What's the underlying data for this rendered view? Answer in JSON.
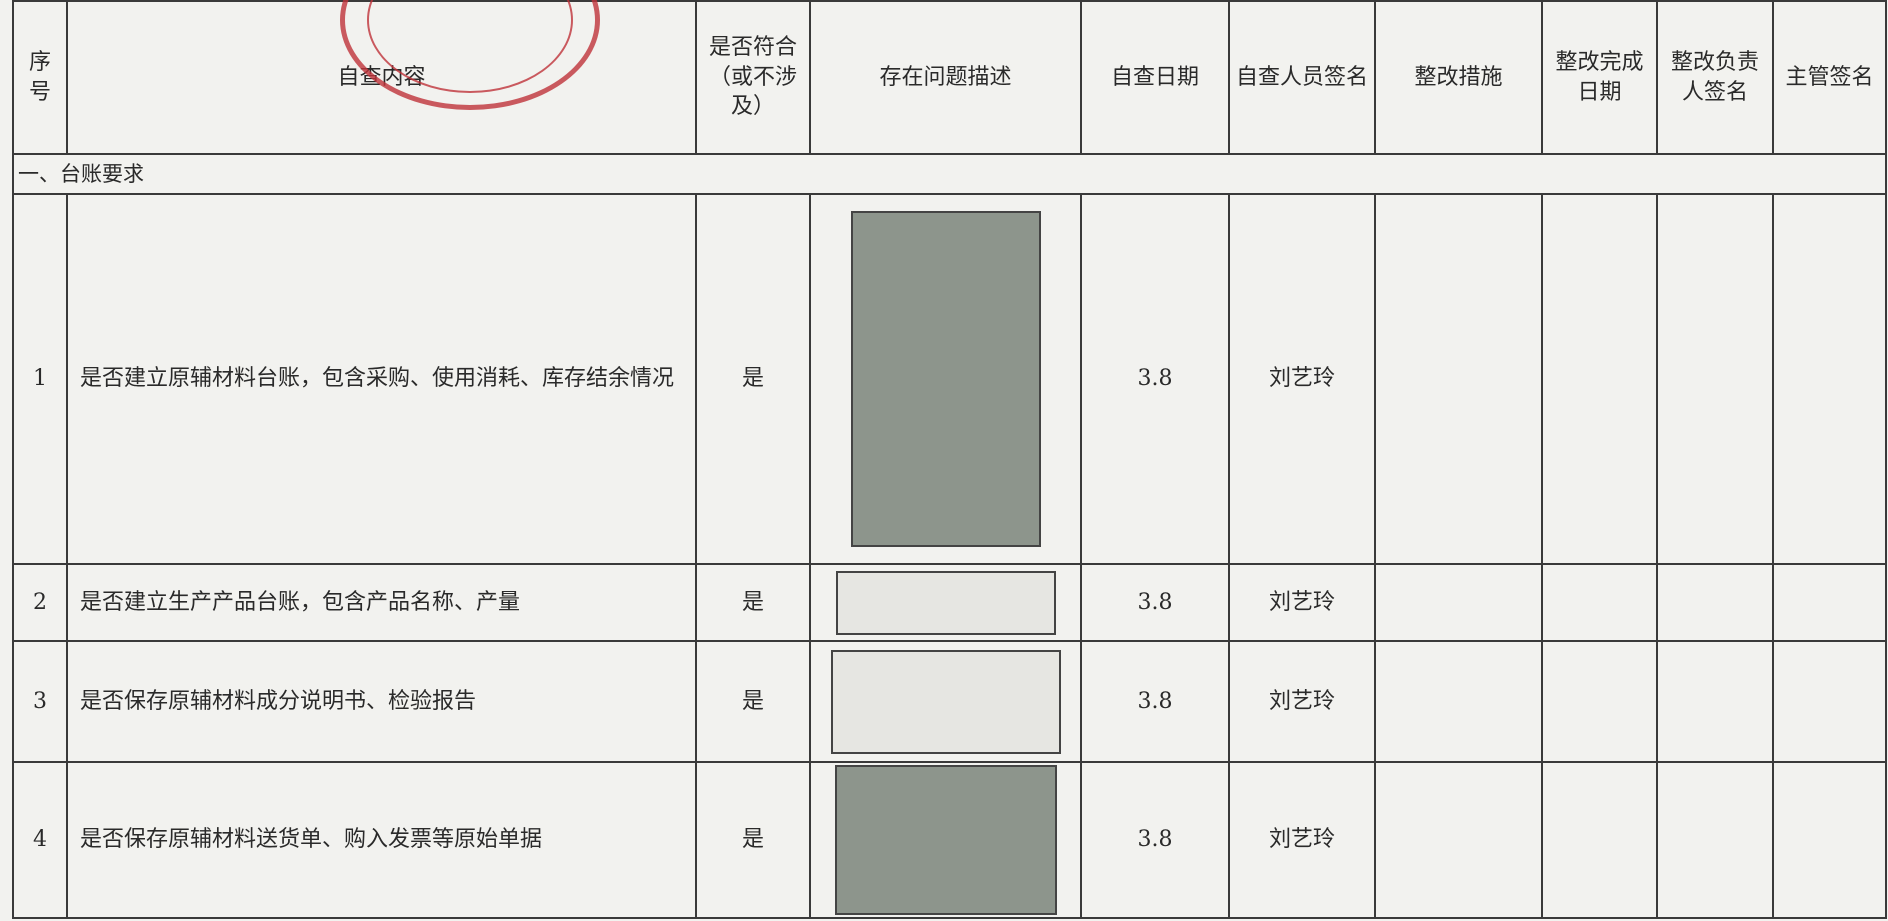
{
  "table": {
    "header": [
      "序号",
      "自查内容",
      "是否符合（或不涉及）",
      "存在问题描述",
      "自查日期",
      "自查人员签名",
      "整改措施",
      "整改完成日期",
      "整改负责人签名",
      "主管签名"
    ],
    "section": "一、台账要求",
    "rows": [
      {
        "no": "1",
        "content": "是否建立原辅材料台账，包含采购、使用消耗、库存结余情况",
        "compliant": "是",
        "date": "3.8",
        "person": "刘艺玲"
      },
      {
        "no": "2",
        "content": "是否建立生产产品台账，包含产品名称、产量",
        "compliant": "是",
        "date": "3.8",
        "person": "刘艺玲"
      },
      {
        "no": "3",
        "content": "是否保存原辅材料成分说明书、检验报告",
        "compliant": "是",
        "date": "3.8",
        "person": "刘艺玲"
      },
      {
        "no": "4",
        "content": "是否保存原辅材料送货单、购入发票等原始单据",
        "compliant": "是",
        "date": "3.8",
        "person": "刘艺玲"
      }
    ]
  }
}
